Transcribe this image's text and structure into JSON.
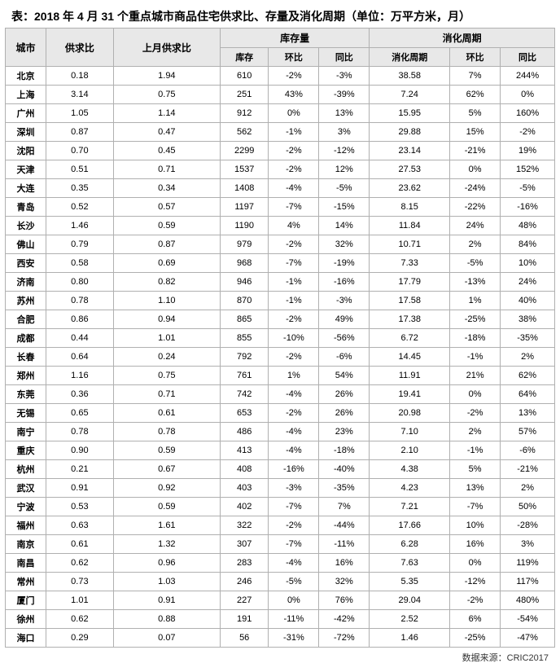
{
  "title": "表：2018 年 4 月 31 个重点城市商品住宅供求比、存量及消化周期（单位：万平方米，月）",
  "source": "数据来源：CRIC2017",
  "headers": {
    "city": "城市",
    "ratio": "供求比",
    "prev_ratio": "上月供求比",
    "stock_group": "库存量",
    "cycle_group": "消化周期",
    "stock": "库存",
    "mom": "环比",
    "yoy": "同比",
    "cycle": "消化周期"
  },
  "rows": [
    {
      "city": "北京",
      "ratio": "0.18",
      "prev": "1.94",
      "stock": "610",
      "s_mom": "-2%",
      "s_yoy": "-3%",
      "cycle": "38.58",
      "c_mom": "7%",
      "c_yoy": "244%"
    },
    {
      "city": "上海",
      "ratio": "3.14",
      "prev": "0.75",
      "stock": "251",
      "s_mom": "43%",
      "s_yoy": "-39%",
      "cycle": "7.24",
      "c_mom": "62%",
      "c_yoy": "0%"
    },
    {
      "city": "广州",
      "ratio": "1.05",
      "prev": "1.14",
      "stock": "912",
      "s_mom": "0%",
      "s_yoy": "13%",
      "cycle": "15.95",
      "c_mom": "5%",
      "c_yoy": "160%"
    },
    {
      "city": "深圳",
      "ratio": "0.87",
      "prev": "0.47",
      "stock": "562",
      "s_mom": "-1%",
      "s_yoy": "3%",
      "cycle": "29.88",
      "c_mom": "15%",
      "c_yoy": "-2%"
    },
    {
      "city": "沈阳",
      "ratio": "0.70",
      "prev": "0.45",
      "stock": "2299",
      "s_mom": "-2%",
      "s_yoy": "-12%",
      "cycle": "23.14",
      "c_mom": "-21%",
      "c_yoy": "19%"
    },
    {
      "city": "天津",
      "ratio": "0.51",
      "prev": "0.71",
      "stock": "1537",
      "s_mom": "-2%",
      "s_yoy": "12%",
      "cycle": "27.53",
      "c_mom": "0%",
      "c_yoy": "152%"
    },
    {
      "city": "大连",
      "ratio": "0.35",
      "prev": "0.34",
      "stock": "1408",
      "s_mom": "-4%",
      "s_yoy": "-5%",
      "cycle": "23.62",
      "c_mom": "-24%",
      "c_yoy": "-5%"
    },
    {
      "city": "青岛",
      "ratio": "0.52",
      "prev": "0.57",
      "stock": "1197",
      "s_mom": "-7%",
      "s_yoy": "-15%",
      "cycle": "8.15",
      "c_mom": "-22%",
      "c_yoy": "-16%"
    },
    {
      "city": "长沙",
      "ratio": "1.46",
      "prev": "0.59",
      "stock": "1190",
      "s_mom": "4%",
      "s_yoy": "14%",
      "cycle": "11.84",
      "c_mom": "24%",
      "c_yoy": "48%"
    },
    {
      "city": "佛山",
      "ratio": "0.79",
      "prev": "0.87",
      "stock": "979",
      "s_mom": "-2%",
      "s_yoy": "32%",
      "cycle": "10.71",
      "c_mom": "2%",
      "c_yoy": "84%"
    },
    {
      "city": "西安",
      "ratio": "0.58",
      "prev": "0.69",
      "stock": "968",
      "s_mom": "-7%",
      "s_yoy": "-19%",
      "cycle": "7.33",
      "c_mom": "-5%",
      "c_yoy": "10%"
    },
    {
      "city": "济南",
      "ratio": "0.80",
      "prev": "0.82",
      "stock": "946",
      "s_mom": "-1%",
      "s_yoy": "-16%",
      "cycle": "17.79",
      "c_mom": "-13%",
      "c_yoy": "24%"
    },
    {
      "city": "苏州",
      "ratio": "0.78",
      "prev": "1.10",
      "stock": "870",
      "s_mom": "-1%",
      "s_yoy": "-3%",
      "cycle": "17.58",
      "c_mom": "1%",
      "c_yoy": "40%"
    },
    {
      "city": "合肥",
      "ratio": "0.86",
      "prev": "0.94",
      "stock": "865",
      "s_mom": "-2%",
      "s_yoy": "49%",
      "cycle": "17.38",
      "c_mom": "-25%",
      "c_yoy": "38%"
    },
    {
      "city": "成都",
      "ratio": "0.44",
      "prev": "1.01",
      "stock": "855",
      "s_mom": "-10%",
      "s_yoy": "-56%",
      "cycle": "6.72",
      "c_mom": "-18%",
      "c_yoy": "-35%"
    },
    {
      "city": "长春",
      "ratio": "0.64",
      "prev": "0.24",
      "stock": "792",
      "s_mom": "-2%",
      "s_yoy": "-6%",
      "cycle": "14.45",
      "c_mom": "-1%",
      "c_yoy": "2%"
    },
    {
      "city": "郑州",
      "ratio": "1.16",
      "prev": "0.75",
      "stock": "761",
      "s_mom": "1%",
      "s_yoy": "54%",
      "cycle": "11.91",
      "c_mom": "21%",
      "c_yoy": "62%"
    },
    {
      "city": "东莞",
      "ratio": "0.36",
      "prev": "0.71",
      "stock": "742",
      "s_mom": "-4%",
      "s_yoy": "26%",
      "cycle": "19.41",
      "c_mom": "0%",
      "c_yoy": "64%"
    },
    {
      "city": "无锡",
      "ratio": "0.65",
      "prev": "0.61",
      "stock": "653",
      "s_mom": "-2%",
      "s_yoy": "26%",
      "cycle": "20.98",
      "c_mom": "-2%",
      "c_yoy": "13%"
    },
    {
      "city": "南宁",
      "ratio": "0.78",
      "prev": "0.78",
      "stock": "486",
      "s_mom": "-4%",
      "s_yoy": "23%",
      "cycle": "7.10",
      "c_mom": "2%",
      "c_yoy": "57%"
    },
    {
      "city": "重庆",
      "ratio": "0.90",
      "prev": "0.59",
      "stock": "413",
      "s_mom": "-4%",
      "s_yoy": "-18%",
      "cycle": "2.10",
      "c_mom": "-1%",
      "c_yoy": "-6%"
    },
    {
      "city": "杭州",
      "ratio": "0.21",
      "prev": "0.67",
      "stock": "408",
      "s_mom": "-16%",
      "s_yoy": "-40%",
      "cycle": "4.38",
      "c_mom": "5%",
      "c_yoy": "-21%"
    },
    {
      "city": "武汉",
      "ratio": "0.91",
      "prev": "0.92",
      "stock": "403",
      "s_mom": "-3%",
      "s_yoy": "-35%",
      "cycle": "4.23",
      "c_mom": "13%",
      "c_yoy": "2%"
    },
    {
      "city": "宁波",
      "ratio": "0.53",
      "prev": "0.59",
      "stock": "402",
      "s_mom": "-7%",
      "s_yoy": "7%",
      "cycle": "7.21",
      "c_mom": "-7%",
      "c_yoy": "50%"
    },
    {
      "city": "福州",
      "ratio": "0.63",
      "prev": "1.61",
      "stock": "322",
      "s_mom": "-2%",
      "s_yoy": "-44%",
      "cycle": "17.66",
      "c_mom": "10%",
      "c_yoy": "-28%"
    },
    {
      "city": "南京",
      "ratio": "0.61",
      "prev": "1.32",
      "stock": "307",
      "s_mom": "-7%",
      "s_yoy": "-11%",
      "cycle": "6.28",
      "c_mom": "16%",
      "c_yoy": "3%"
    },
    {
      "city": "南昌",
      "ratio": "0.62",
      "prev": "0.96",
      "stock": "283",
      "s_mom": "-4%",
      "s_yoy": "16%",
      "cycle": "7.63",
      "c_mom": "0%",
      "c_yoy": "119%"
    },
    {
      "city": "常州",
      "ratio": "0.73",
      "prev": "1.03",
      "stock": "246",
      "s_mom": "-5%",
      "s_yoy": "32%",
      "cycle": "5.35",
      "c_mom": "-12%",
      "c_yoy": "117%"
    },
    {
      "city": "厦门",
      "ratio": "1.01",
      "prev": "0.91",
      "stock": "227",
      "s_mom": "0%",
      "s_yoy": "76%",
      "cycle": "29.04",
      "c_mom": "-2%",
      "c_yoy": "480%"
    },
    {
      "city": "徐州",
      "ratio": "0.62",
      "prev": "0.88",
      "stock": "191",
      "s_mom": "-11%",
      "s_yoy": "-42%",
      "cycle": "2.52",
      "c_mom": "6%",
      "c_yoy": "-54%"
    },
    {
      "city": "海口",
      "ratio": "0.29",
      "prev": "0.07",
      "stock": "56",
      "s_mom": "-31%",
      "s_yoy": "-72%",
      "cycle": "1.46",
      "c_mom": "-25%",
      "c_yoy": "-47%"
    }
  ]
}
